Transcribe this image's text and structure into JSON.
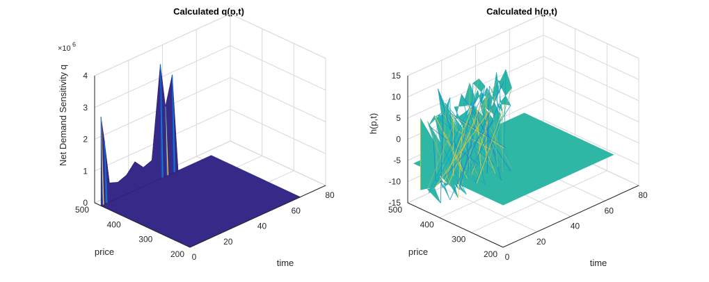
{
  "chart_data": [
    {
      "type": "surface",
      "title": "Calculated q(p,t)",
      "xlabel": "time",
      "ylabel": "price",
      "zlabel": "Net Demand Sensitivity q",
      "z_multiplier_label": "×10",
      "z_multiplier_exponent": "6",
      "xlim": [
        0,
        80
      ],
      "ylim": [
        200,
        500
      ],
      "zlim": [
        0,
        4
      ],
      "xticks": [
        "0",
        "20",
        "40",
        "60",
        "80"
      ],
      "yticks": [
        "200",
        "300",
        "400",
        "500"
      ],
      "zticks": [
        "0",
        "1",
        "2",
        "3",
        "4"
      ],
      "grid": true,
      "colors": [
        "#352a87",
        "#0f5cdd",
        "#1481d6",
        "#06a4ca",
        "#2eb7a4",
        "#87bf77",
        "#d1bb59",
        "#fec832"
      ],
      "surface_region": {
        "time": [
          0,
          65
        ],
        "price": [
          200,
          480
        ]
      },
      "peaks": [
        {
          "time": 0,
          "price": 480,
          "q": 2.8
        },
        {
          "time": 2,
          "price": 480,
          "q": 2.0
        },
        {
          "time": 5,
          "price": 480,
          "q": 0.6
        },
        {
          "time": 10,
          "price": 480,
          "q": 0.5
        },
        {
          "time": 15,
          "price": 480,
          "q": 0.6
        },
        {
          "time": 20,
          "price": 480,
          "q": 0.9
        },
        {
          "time": 25,
          "price": 480,
          "q": 0.6
        },
        {
          "time": 30,
          "price": 480,
          "q": 0.7
        },
        {
          "time": 35,
          "price": 480,
          "q": 3.6
        },
        {
          "time": 38,
          "price": 480,
          "q": 2.2
        },
        {
          "time": 42,
          "price": 480,
          "q": 3.1
        }
      ]
    },
    {
      "type": "surface",
      "title": "Calculated h(p,t)",
      "xlabel": "time",
      "ylabel": "price",
      "zlabel": "h(p,t)",
      "xlim": [
        0,
        80
      ],
      "ylim": [
        200,
        500
      ],
      "zlim": [
        -15,
        15
      ],
      "xticks": [
        "0",
        "20",
        "40",
        "60",
        "80"
      ],
      "yticks": [
        "200",
        "300",
        "400",
        "500"
      ],
      "zticks": [
        "-15",
        "-10",
        "-5",
        "0",
        "5",
        "10",
        "15"
      ],
      "grid": true,
      "colors": [
        "#352a87",
        "#0f5cdd",
        "#1481d6",
        "#06a4ca",
        "#2eb7a4",
        "#87bf77",
        "#d1bb59",
        "#fec832"
      ],
      "surface_region": {
        "time": [
          0,
          65
        ],
        "price": [
          200,
          480
        ]
      },
      "flat_level": -5,
      "noisy_band_level": [
        -13,
        12
      ]
    }
  ]
}
